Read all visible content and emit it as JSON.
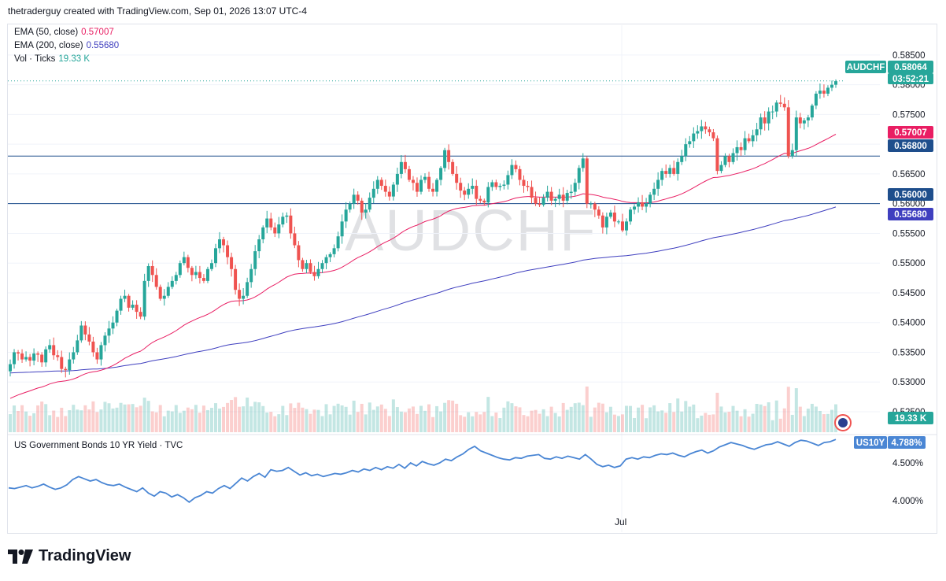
{
  "header": {
    "credit": "thetraderguy created with TradingView.com, Sep 01, 2026 13:07 UTC-4"
  },
  "watermark": "AUDCHF",
  "legend": [
    {
      "label": "EMA (50, close)",
      "value": "0.57007",
      "color": "#e91e63"
    },
    {
      "label": "EMA (200, close)",
      "value": "0.55680",
      "color": "#3f3fbf"
    },
    {
      "label": "Vol · Ticks",
      "value": "19.33 K",
      "color": "#26a69a"
    }
  ],
  "badges": {
    "symbol": "AUDCHF",
    "last_price": "0.58064",
    "countdown": "03:52:21",
    "ema50": "0.57007",
    "level_high": "0.56800",
    "level_low": "0.56000",
    "ema200": "0.55680",
    "volume": "19.33 K",
    "us10y_symbol": "US10Y",
    "us10y_value": "4.788%"
  },
  "subchart": {
    "title": "US Government Bonds 10 YR Yield · TVC"
  },
  "footer": {
    "brand": "TradingView"
  },
  "colors": {
    "up": "#26a69a",
    "down": "#ef5350",
    "ema50": "#e91e63",
    "ema200": "#3f3fbf",
    "level_line": "#1e4e8c",
    "us10y": "#4a86d4"
  },
  "chart_data": [
    {
      "type": "candlestick",
      "symbol": "AUDCHF",
      "ylim": [
        0.525,
        0.5875
      ],
      "y_ticks": [
        "0.58500",
        "0.58000",
        "0.57500",
        "0.57000",
        "0.56500",
        "0.56000",
        "0.55500",
        "0.55000",
        "0.54500",
        "0.54000",
        "0.53500",
        "0.53000",
        "0.52500"
      ],
      "x_tick_labels": [
        "Jul"
      ],
      "horizontal_levels": [
        0.568,
        0.56
      ],
      "last_price": 0.58064,
      "close": [
        0.533,
        0.535,
        0.5348,
        0.5338,
        0.5342,
        0.5336,
        0.5348,
        0.5346,
        0.5333,
        0.5355,
        0.5362,
        0.5345,
        0.5342,
        0.5322,
        0.532,
        0.5338,
        0.535,
        0.537,
        0.5395,
        0.538,
        0.5368,
        0.535,
        0.5338,
        0.5362,
        0.5378,
        0.539,
        0.54,
        0.542,
        0.544,
        0.5445,
        0.5425,
        0.543,
        0.5418,
        0.541,
        0.547,
        0.5495,
        0.548,
        0.546,
        0.544,
        0.5445,
        0.546,
        0.547,
        0.548,
        0.55,
        0.551,
        0.5492,
        0.548,
        0.5485,
        0.5475,
        0.547,
        0.549,
        0.55,
        0.5525,
        0.554,
        0.553,
        0.551,
        0.549,
        0.5455,
        0.544,
        0.5445,
        0.5468,
        0.549,
        0.552,
        0.554,
        0.556,
        0.5575,
        0.556,
        0.555,
        0.5565,
        0.5578,
        0.558,
        0.555,
        0.553,
        0.5505,
        0.549,
        0.55,
        0.5485,
        0.5478,
        0.549,
        0.55,
        0.551,
        0.5515,
        0.5525,
        0.5545,
        0.557,
        0.559,
        0.56,
        0.5615,
        0.5605,
        0.5585,
        0.559,
        0.561,
        0.5625,
        0.564,
        0.563,
        0.562,
        0.5612,
        0.5632,
        0.565,
        0.567,
        0.5658,
        0.564,
        0.5635,
        0.562,
        0.564,
        0.5645,
        0.5625,
        0.562,
        0.564,
        0.566,
        0.569,
        0.567,
        0.565,
        0.5635,
        0.5622,
        0.5615,
        0.5625,
        0.563,
        0.5608,
        0.5605,
        0.5602,
        0.5628,
        0.5636,
        0.5628,
        0.563,
        0.5632,
        0.5648,
        0.5665,
        0.5658,
        0.564,
        0.563,
        0.5628,
        0.561,
        0.56,
        0.5598,
        0.561,
        0.562,
        0.5605,
        0.5608,
        0.5615,
        0.5605,
        0.5618,
        0.562,
        0.5635,
        0.566,
        0.5676,
        0.56,
        0.56,
        0.559,
        0.558,
        0.556,
        0.5578,
        0.5585,
        0.557,
        0.557,
        0.5555,
        0.557,
        0.559,
        0.5595,
        0.5602,
        0.5595,
        0.56,
        0.5615,
        0.5625,
        0.564,
        0.5655,
        0.565,
        0.566,
        0.565,
        0.567,
        0.568,
        0.57,
        0.5705,
        0.5718,
        0.5722,
        0.573,
        0.5725,
        0.572,
        0.571,
        0.5655,
        0.5665,
        0.568,
        0.567,
        0.5685,
        0.5695,
        0.569,
        0.571,
        0.5705,
        0.5715,
        0.5725,
        0.5745,
        0.5735,
        0.5755,
        0.5755,
        0.577,
        0.5768,
        0.5762,
        0.568,
        0.569,
        0.5745,
        0.5735,
        0.574,
        0.5745,
        0.5765,
        0.5785,
        0.579,
        0.5785,
        0.5795,
        0.58,
        0.5806
      ]
    },
    {
      "type": "line",
      "name": "EMA (50, close)",
      "last_value": 0.57007
    },
    {
      "type": "line",
      "name": "EMA (200, close)",
      "last_value": 0.5568
    },
    {
      "type": "bar",
      "name": "Vol · Ticks",
      "last_value": "19.33 K"
    },
    {
      "type": "line",
      "name": "US Government Bonds 10 YR Yield · TVC",
      "ylim": [
        3.85,
        4.95
      ],
      "y_ticks": [
        "4.500%",
        "4.000%"
      ],
      "last_value": 4.788,
      "values": [
        4.17,
        4.16,
        4.18,
        4.2,
        4.17,
        4.19,
        4.22,
        4.18,
        4.15,
        4.17,
        4.21,
        4.28,
        4.32,
        4.29,
        4.26,
        4.28,
        4.24,
        4.21,
        4.2,
        4.22,
        4.18,
        4.15,
        4.12,
        4.17,
        4.1,
        4.06,
        4.12,
        4.1,
        4.05,
        4.08,
        4.04,
        3.98,
        4.04,
        4.07,
        4.12,
        4.1,
        4.16,
        4.2,
        4.16,
        4.23,
        4.3,
        4.26,
        4.32,
        4.36,
        4.31,
        4.41,
        4.39,
        4.4,
        4.44,
        4.39,
        4.34,
        4.37,
        4.33,
        4.35,
        4.32,
        4.34,
        4.36,
        4.35,
        4.37,
        4.4,
        4.38,
        4.42,
        4.4,
        4.44,
        4.41,
        4.45,
        4.43,
        4.48,
        4.43,
        4.5,
        4.46,
        4.52,
        4.49,
        4.47,
        4.5,
        4.55,
        4.53,
        4.58,
        4.62,
        4.68,
        4.72,
        4.66,
        4.63,
        4.6,
        4.57,
        4.55,
        4.54,
        4.57,
        4.56,
        4.59,
        4.6,
        4.61,
        4.56,
        4.55,
        4.58,
        4.56,
        4.59,
        4.57,
        4.55,
        4.61,
        4.55,
        4.48,
        4.45,
        4.47,
        4.44,
        4.46,
        4.55,
        4.57,
        4.55,
        4.58,
        4.57,
        4.6,
        4.62,
        4.61,
        4.63,
        4.6,
        4.58,
        4.62,
        4.65,
        4.67,
        4.63,
        4.66,
        4.71,
        4.74,
        4.77,
        4.75,
        4.73,
        4.7,
        4.68,
        4.71,
        4.74,
        4.75,
        4.78,
        4.75,
        4.72,
        4.77,
        4.8,
        4.79,
        4.76,
        4.73,
        4.77,
        4.78,
        4.81
      ]
    }
  ]
}
